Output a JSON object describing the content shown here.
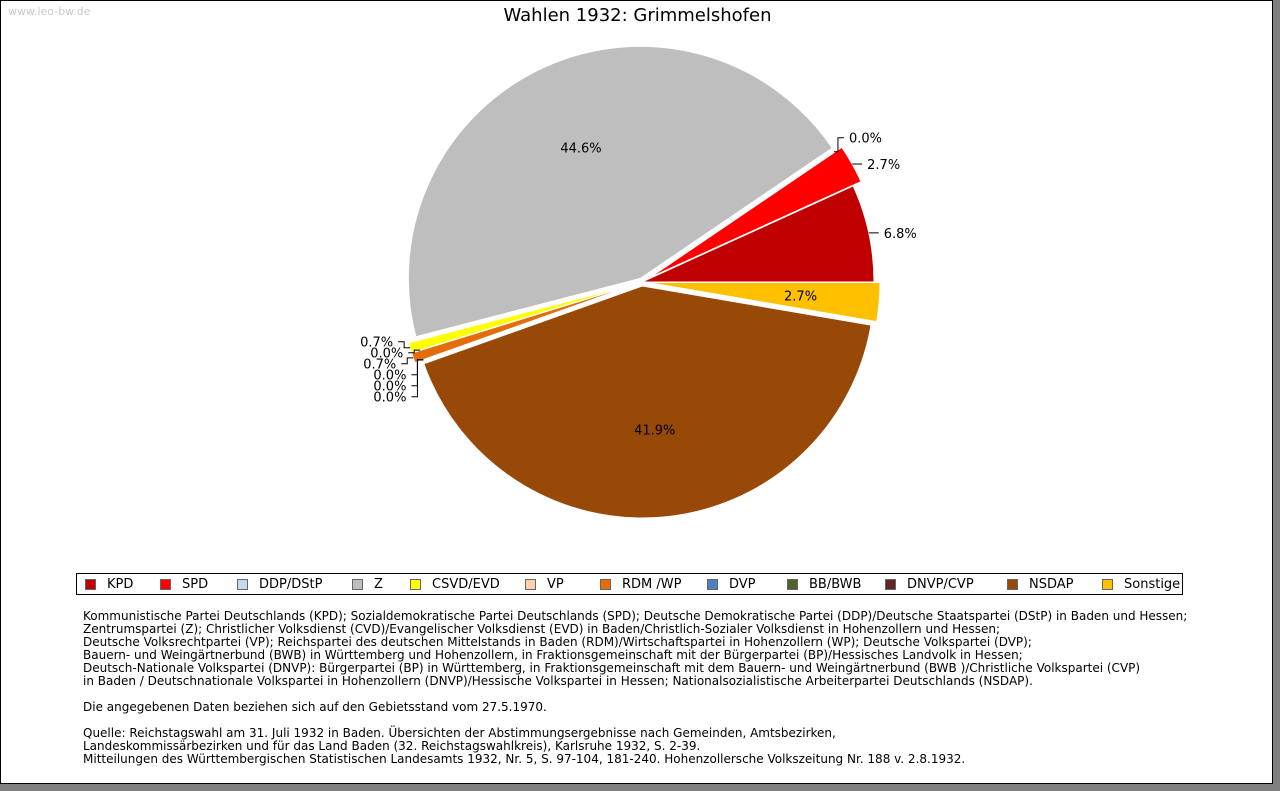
{
  "watermark": "www.leo-bw.de",
  "chart_data": {
    "type": "pie",
    "title": "Wahlen 1932: Grimmelshofen",
    "slices": [
      {
        "party": "KPD",
        "value": 6.8,
        "label": "6.8%",
        "color": "#c00000"
      },
      {
        "party": "SPD",
        "value": 2.7,
        "label": "2.7%",
        "color": "#ff0000"
      },
      {
        "party": "DDP/DStP",
        "value": 0.0,
        "label": "0.0%",
        "color": "#c8d8f0"
      },
      {
        "party": "Z",
        "value": 44.6,
        "label": "44.6%",
        "color": "#bebebe"
      },
      {
        "party": "CSVD/EVD",
        "value": 0.7,
        "label": "0.7%",
        "color": "#ffff00"
      },
      {
        "party": "VP",
        "value": 0.0,
        "label": "0.0%",
        "color": "#ffd0b0"
      },
      {
        "party": "RDM /WP",
        "value": 0.7,
        "label": "0.7%",
        "color": "#e46c0a"
      },
      {
        "party": "DVP",
        "value": 0.0,
        "label": "0.0%",
        "color": "#4f81bd"
      },
      {
        "party": "BB/BWB",
        "value": 0.0,
        "label": "0.0%",
        "color": "#4f6228"
      },
      {
        "party": "DNVP/CVP",
        "value": 0.0,
        "label": "0.0%",
        "color": "#632523"
      },
      {
        "party": "NSDAP",
        "value": 41.9,
        "label": "41.9%",
        "color": "#984807"
      },
      {
        "party": "Sonstige",
        "value": 2.7,
        "label": "2.7%",
        "color": "#ffc000"
      }
    ]
  },
  "legend": [
    {
      "label": "KPD",
      "color": "#c00000"
    },
    {
      "label": "SPD",
      "color": "#ff0000"
    },
    {
      "label": "DDP/DStP",
      "color": "#c8d8f0"
    },
    {
      "label": "Z",
      "color": "#bebebe"
    },
    {
      "label": "CSVD/EVD",
      "color": "#ffff00"
    },
    {
      "label": "VP",
      "color": "#ffd0b0"
    },
    {
      "label": "RDM /WP",
      "color": "#e46c0a"
    },
    {
      "label": "DVP",
      "color": "#4f81bd"
    },
    {
      "label": "BB/BWB",
      "color": "#4f6228"
    },
    {
      "label": "DNVP/CVP",
      "color": "#632523"
    },
    {
      "label": "NSDAP",
      "color": "#984807"
    },
    {
      "label": "Sonstige",
      "color": "#ffc000"
    }
  ],
  "notes": {
    "parties": [
      "Kommunistische Partei Deutschlands (KPD); Sozialdemokratische Partei Deutschlands (SPD); Deutsche Demokratische Partei (DDP)/Deutsche Staatspartei (DStP) in Baden und Hessen;",
      "Zentrumspartei (Z); Christlicher Volksdienst (CVD)/Evangelischer Volksdienst (EVD) in Baden/Christlich-Sozialer Volksdienst in Hohenzollern und Hessen;",
      "Deutsche Volksrechtpartei (VP); Reichspartei des deutschen Mittelstands in Baden (RDM)/Wirtschaftspartei in Hohenzollern (WP); Deutsche Volkspartei (DVP);",
      "Bauern- und Weingärtnerbund (BWB) in Württemberg und Hohenzollern, in Fraktionsgemeinschaft mit der Bürgerpartei (BP)/Hessisches Landvolk in Hessen;",
      "Deutsch-Nationale Volkspartei (DNVP): Bürgerpartei (BP) in Württemberg, in Fraktionsgemeinschaft mit dem Bauern- und Weingärtnerbund (BWB )/Christliche Volkspartei (CVP)",
      "in Baden / Deutschnationale Volkspartei in Hohenzollern (DNVP)/Hessische Volkspartei in Hessen; Nationalsozialistische Arbeiterpartei Deutschlands (NSDAP)."
    ],
    "territory": "Die angegebenen Daten beziehen sich auf den Gebietsstand vom 27.5.1970.",
    "source": [
      "Quelle: Reichstagswahl am 31. Juli 1932 in Baden. Übersichten der Abstimmungsergebnisse nach Gemeinden, Amtsbezirken,",
      "Landeskommissärbezirken und für das Land Baden (32. Reichstagswahlkreis), Karlsruhe 1932, S. 2-39.",
      "Mitteilungen des Württembergischen Statistischen Landesamts 1932, Nr. 5, S. 97-104, 181-240. Hohenzollersche Volkszeitung Nr. 188 v. 2.8.1932."
    ]
  }
}
